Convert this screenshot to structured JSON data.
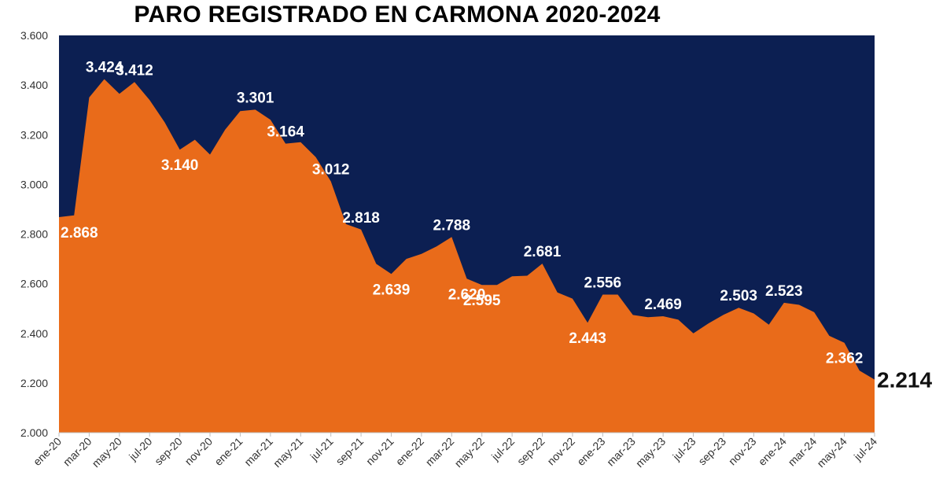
{
  "title": "PARO REGISTRADO EN CARMONA 2020-2024",
  "colors": {
    "plot_background": "#0c1f52",
    "area_fill": "#e96b1a",
    "label_text": "#ffffff",
    "axis_text": "#333333"
  },
  "chart_data": {
    "type": "area",
    "title": "PARO REGISTRADO EN CARMONA 2020-2024",
    "xlabel": "",
    "ylabel": "",
    "ylim": [
      2000,
      3600
    ],
    "y_ticks": [
      "2.000",
      "2.200",
      "2.400",
      "2.600",
      "2.800",
      "3.000",
      "3.200",
      "3.400",
      "3.600"
    ],
    "x_tick_labels": [
      "ene-20",
      "mar-20",
      "may-20",
      "jul-20",
      "sep-20",
      "nov-20",
      "ene-21",
      "mar-21",
      "may-21",
      "jul-21",
      "sep-21",
      "nov-21",
      "ene-22",
      "mar-22",
      "may-22",
      "jul-22",
      "sep-22",
      "nov-22",
      "ene-23",
      "mar-23",
      "may-23",
      "jul-23",
      "sep-23",
      "nov-23",
      "ene-24",
      "mar-24",
      "may-24",
      "jul-24"
    ],
    "months": [
      "ene-20",
      "feb-20",
      "mar-20",
      "abr-20",
      "may-20",
      "jun-20",
      "jul-20",
      "ago-20",
      "sep-20",
      "oct-20",
      "nov-20",
      "dic-20",
      "ene-21",
      "feb-21",
      "mar-21",
      "abr-21",
      "may-21",
      "jun-21",
      "jul-21",
      "ago-21",
      "sep-21",
      "oct-21",
      "nov-21",
      "dic-21",
      "ene-22",
      "feb-22",
      "mar-22",
      "abr-22",
      "may-22",
      "jun-22",
      "jul-22",
      "ago-22",
      "sep-22",
      "oct-22",
      "nov-22",
      "dic-22",
      "ene-23",
      "feb-23",
      "mar-23",
      "abr-23",
      "may-23",
      "jun-23",
      "jul-23",
      "ago-23",
      "sep-23",
      "oct-23",
      "nov-23",
      "dic-23",
      "ene-24",
      "feb-24",
      "mar-24",
      "abr-24",
      "may-24",
      "jun-24",
      "jul-24"
    ],
    "values": [
      2868,
      2875,
      3350,
      3424,
      3365,
      3412,
      3340,
      3250,
      3140,
      3180,
      3120,
      3220,
      3295,
      3301,
      3260,
      3164,
      3170,
      3110,
      3012,
      2840,
      2818,
      2680,
      2639,
      2700,
      2720,
      2750,
      2788,
      2620,
      2595,
      2595,
      2630,
      2632,
      2681,
      2565,
      2540,
      2443,
      2556,
      2556,
      2474,
      2465,
      2469,
      2455,
      2400,
      2440,
      2475,
      2503,
      2480,
      2435,
      2523,
      2515,
      2485,
      2390,
      2362,
      2250,
      2214
    ],
    "data_labels": [
      {
        "i": 0,
        "text": "2.868"
      },
      {
        "i": 3,
        "text": "3.424"
      },
      {
        "i": 5,
        "text": "3.412"
      },
      {
        "i": 8,
        "text": "3.140"
      },
      {
        "i": 13,
        "text": "3.301"
      },
      {
        "i": 15,
        "text": "3.164"
      },
      {
        "i": 18,
        "text": "3.012"
      },
      {
        "i": 20,
        "text": "2.818"
      },
      {
        "i": 22,
        "text": "2.639"
      },
      {
        "i": 26,
        "text": "2.788"
      },
      {
        "i": 27,
        "text": "2.620"
      },
      {
        "i": 28,
        "text": "2.595"
      },
      {
        "i": 32,
        "text": "2.681"
      },
      {
        "i": 35,
        "text": "2.443"
      },
      {
        "i": 36,
        "text": "2.556"
      },
      {
        "i": 40,
        "text": "2.469"
      },
      {
        "i": 45,
        "text": "2.503"
      },
      {
        "i": 48,
        "text": "2.523"
      },
      {
        "i": 52,
        "text": "2.362"
      },
      {
        "i": 54,
        "text": "2.214"
      }
    ],
    "grid": false,
    "legend": "none"
  }
}
